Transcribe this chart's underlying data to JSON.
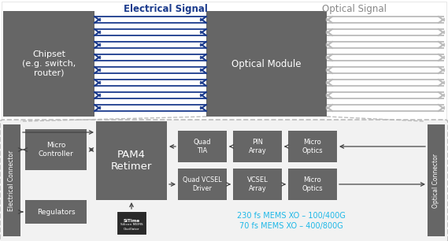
{
  "bg_color": "#ffffff",
  "dark_gray": "#666666",
  "med_gray": "#888888",
  "light_gray": "#bbbbbb",
  "white": "#ffffff",
  "blue_text": "#1eb8e8",
  "dark_blue": "#1a3a8c",
  "panel_bg": "#f2f2f2",
  "title_elec": "Electrical Signal",
  "title_opt": "Optical Signal",
  "label_elec_conn": "Electrical Connector",
  "label_opt_conn": "Optical Connector",
  "chipset_text": "Chipset\n(e.g. switch,\nrouter)",
  "optical_module_text": "Optical Module",
  "micro_ctrl_text": "Micro\nController",
  "pam4_text": "PAM4\nRetimer",
  "quad_tia_text": "Quad\nTIA",
  "pin_array_text": "PIN\nArray",
  "micro_optics1_text": "Micro\nOptics",
  "quad_vcsel_text": "Quad VCSEL\nDriver",
  "vcsel_array_text": "VCSEL\nArray",
  "micro_optics2_text": "Micro\nOptics",
  "regulators_text": "Regulators",
  "mems_line1": "230 fs MEMS XO – 100/400G",
  "mems_line2": "70 fs MEMS XO – 400/800G"
}
